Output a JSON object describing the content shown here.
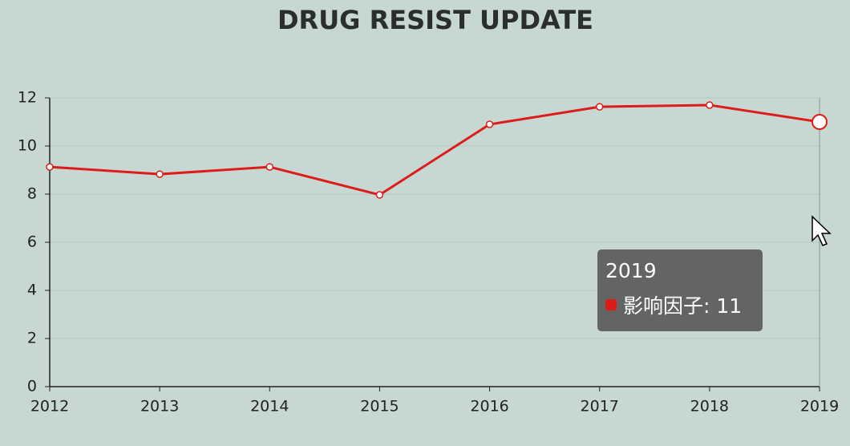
{
  "chart_data": {
    "type": "line",
    "title": "DRUG RESIST UPDATE",
    "categories": [
      "2012",
      "2013",
      "2014",
      "2015",
      "2016",
      "2017",
      "2018",
      "2019"
    ],
    "series": [
      {
        "name": "影响因子",
        "color": "#dd1c1a",
        "values": [
          9.13,
          8.83,
          9.13,
          7.97,
          10.9,
          11.63,
          11.7,
          11
        ]
      }
    ],
    "ylim": [
      0,
      12
    ],
    "yticks": [
      0,
      2,
      4,
      6,
      8,
      10,
      12
    ],
    "grid": true
  }
}
